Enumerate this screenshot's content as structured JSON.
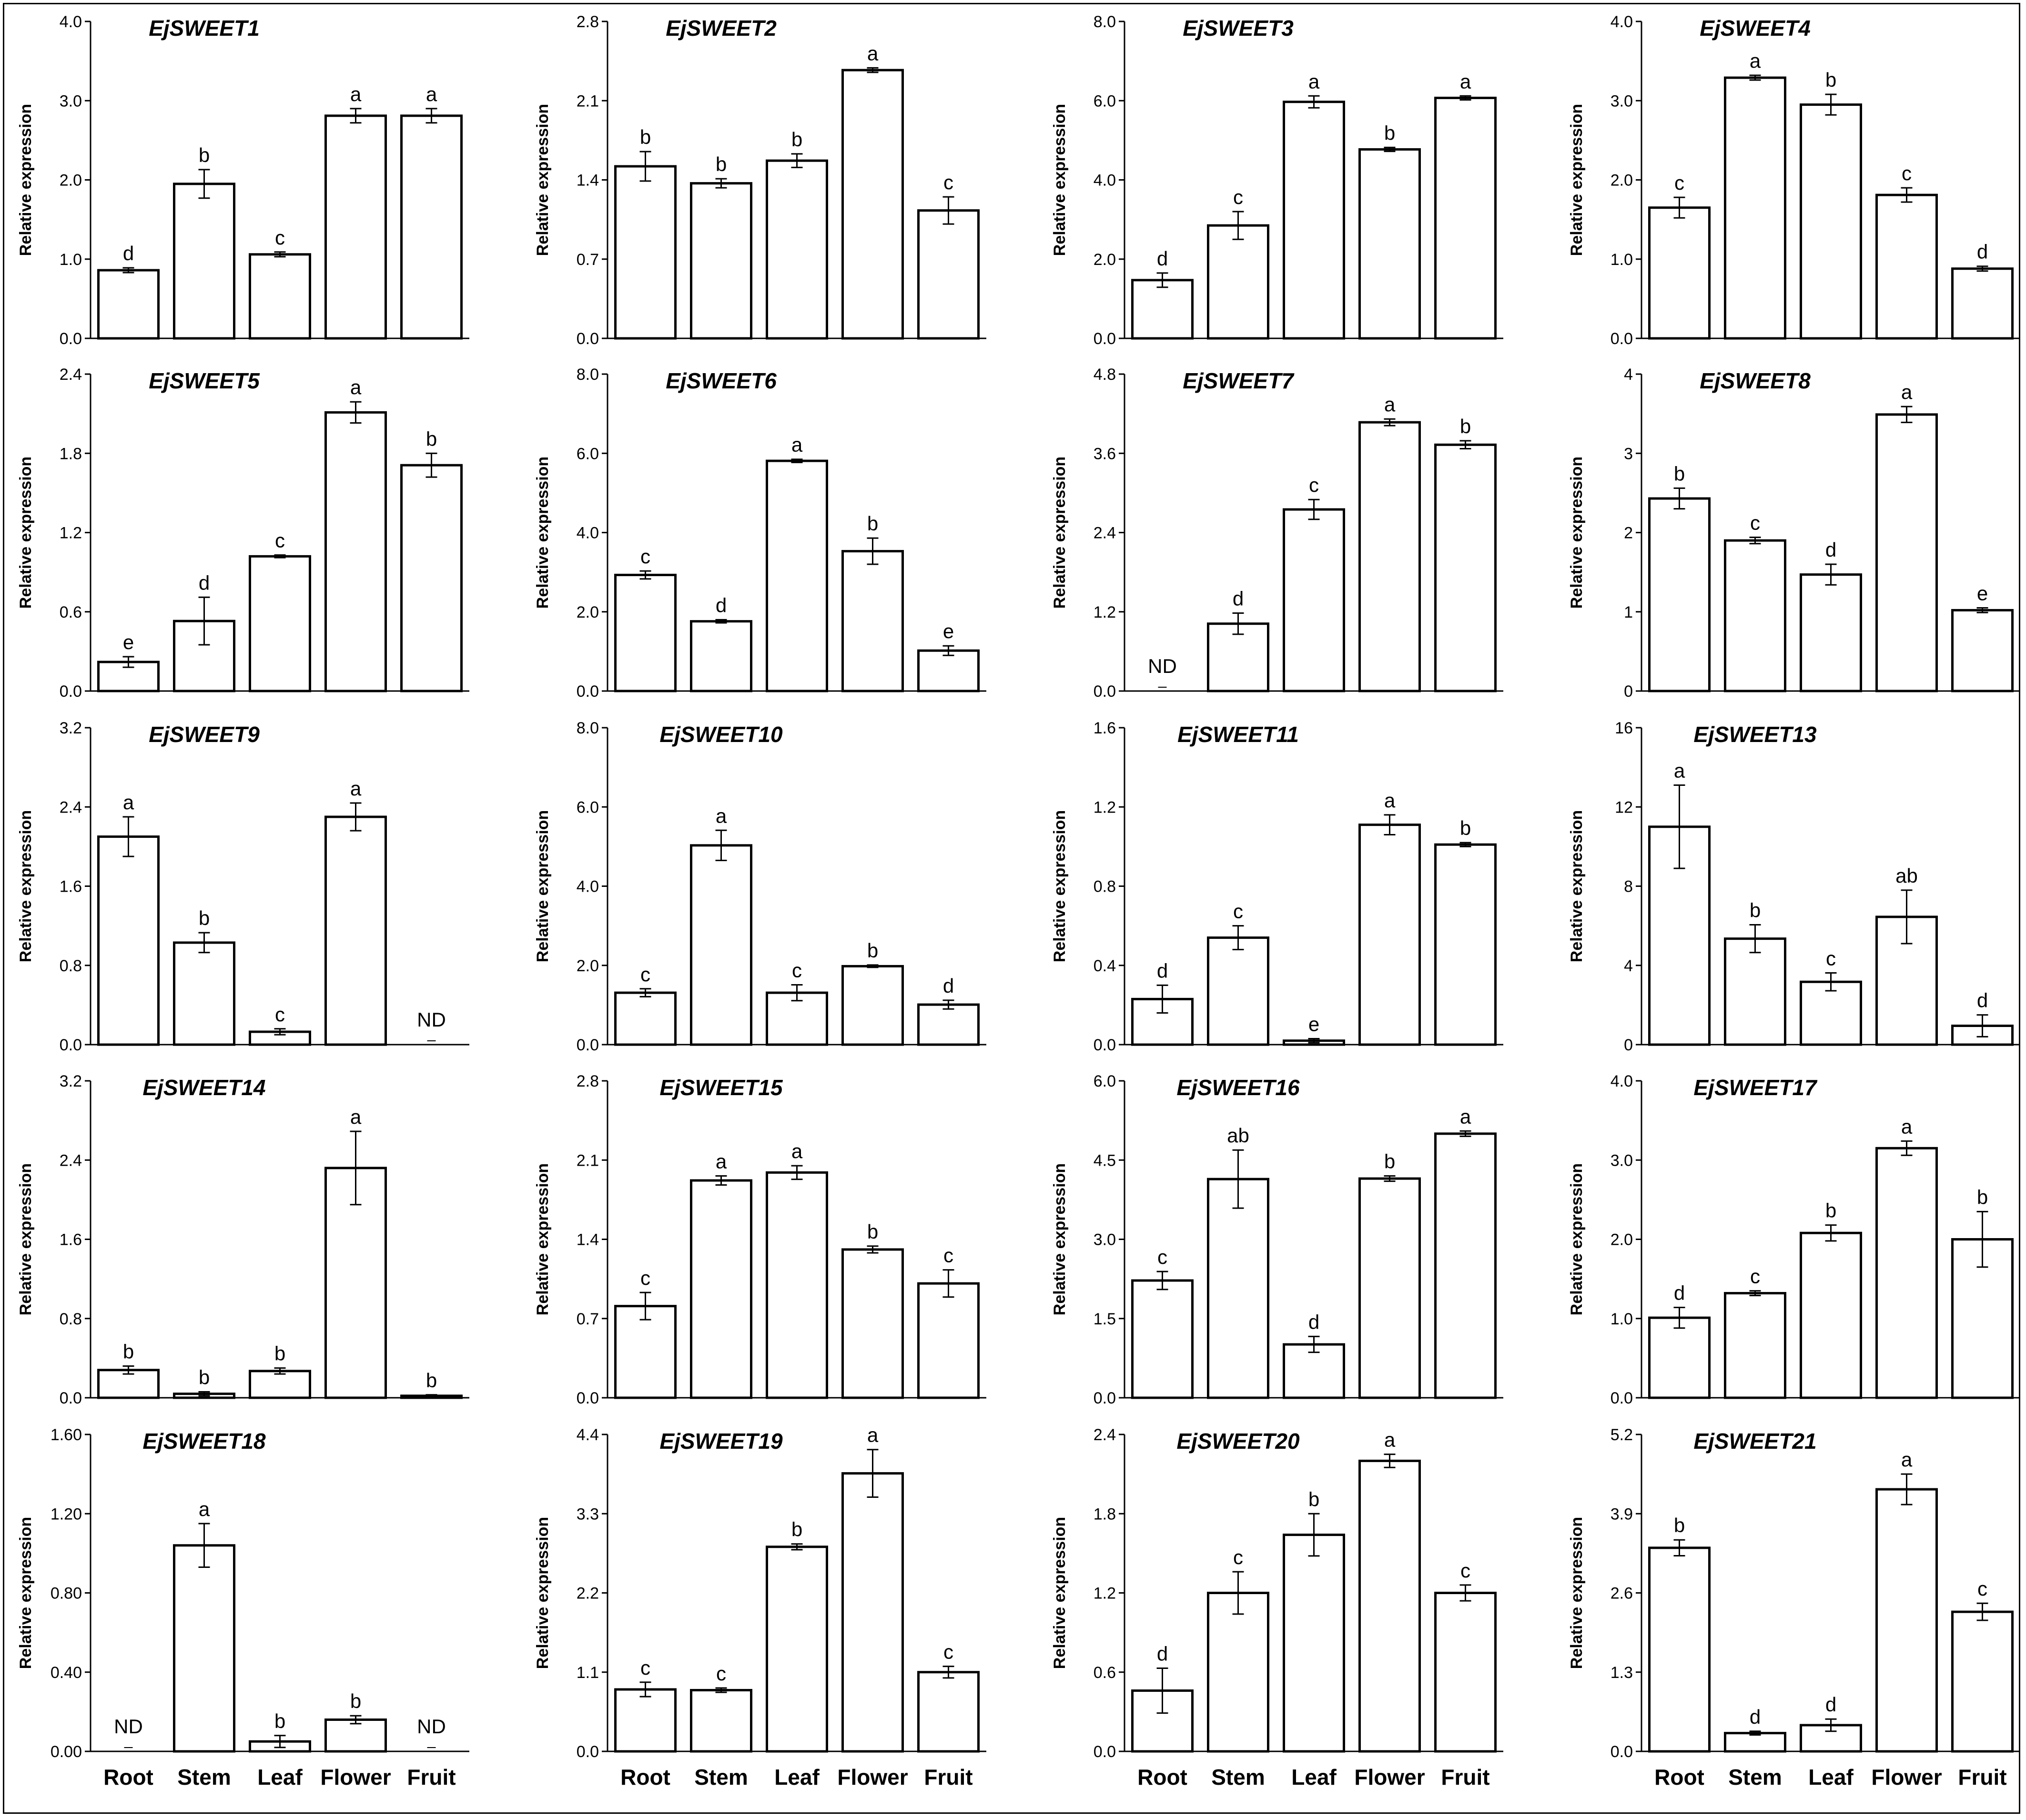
{
  "figure": {
    "ylabel": "Relative expression",
    "categories": [
      "Root",
      "Stem",
      "Leaf",
      "Flower",
      "Fruit"
    ],
    "nd_label": "ND"
  },
  "chart_data": [
    {
      "type": "bar",
      "title": "EjSWEET1",
      "ylabel": "Relative expression",
      "categories": [
        "Root",
        "Stem",
        "Leaf",
        "Flower",
        "Fruit"
      ],
      "ylim": [
        0,
        4.0
      ],
      "yticks": [
        "0.0",
        "1.0",
        "2.0",
        "3.0",
        "4.0"
      ],
      "values": [
        0.86,
        1.95,
        1.06,
        2.81,
        2.81
      ],
      "errors": [
        0.03,
        0.18,
        0.03,
        0.09,
        0.09
      ],
      "letters": [
        "d",
        "b",
        "c",
        "a",
        "a"
      ]
    },
    {
      "type": "bar",
      "title": "EjSWEET2",
      "ylabel": "Relative expression",
      "categories": [
        "Root",
        "Stem",
        "Leaf",
        "Flower",
        "Fruit"
      ],
      "ylim": [
        0,
        2.8
      ],
      "yticks": [
        "0.0",
        "0.7",
        "1.4",
        "2.1",
        "2.8"
      ],
      "values": [
        1.52,
        1.37,
        1.57,
        2.37,
        1.13
      ],
      "errors": [
        0.13,
        0.04,
        0.06,
        0.02,
        0.12
      ],
      "letters": [
        "b",
        "b",
        "b",
        "a",
        "c"
      ]
    },
    {
      "type": "bar",
      "title": "EjSWEET3",
      "ylabel": "Relative expression",
      "categories": [
        "Root",
        "Stem",
        "Leaf",
        "Flower",
        "Fruit"
      ],
      "ylim": [
        0,
        8.0
      ],
      "yticks": [
        "0.0",
        "2.0",
        "4.0",
        "6.0",
        "8.0"
      ],
      "values": [
        1.47,
        2.85,
        5.97,
        4.77,
        6.07
      ],
      "errors": [
        0.18,
        0.35,
        0.15,
        0.05,
        0.05
      ],
      "letters": [
        "d",
        "c",
        "a",
        "b",
        "a"
      ]
    },
    {
      "type": "bar",
      "title": "EjSWEET4",
      "ylabel": "Relative expression",
      "categories": [
        "Root",
        "Stem",
        "Leaf",
        "Flower",
        "Fruit"
      ],
      "ylim": [
        0,
        4.0
      ],
      "yticks": [
        "0.0",
        "1.0",
        "2.0",
        "3.0",
        "4.0"
      ],
      "values": [
        1.65,
        3.29,
        2.95,
        1.81,
        0.88
      ],
      "errors": [
        0.13,
        0.03,
        0.13,
        0.09,
        0.03
      ],
      "letters": [
        "c",
        "a",
        "b",
        "c",
        "d"
      ]
    },
    {
      "type": "bar",
      "title": "EjSWEET5",
      "ylabel": "Relative expression",
      "categories": [
        "Root",
        "Stem",
        "Leaf",
        "Flower",
        "Fruit"
      ],
      "ylim": [
        0,
        2.4
      ],
      "yticks": [
        "0.0",
        "0.6",
        "1.2",
        "1.8",
        "2.4"
      ],
      "values": [
        0.22,
        0.53,
        1.02,
        2.11,
        1.71
      ],
      "errors": [
        0.04,
        0.18,
        0.01,
        0.08,
        0.09
      ],
      "letters": [
        "e",
        "d",
        "c",
        "a",
        "b"
      ]
    },
    {
      "type": "bar",
      "title": "EjSWEET6",
      "ylabel": "Relative expression",
      "categories": [
        "Root",
        "Stem",
        "Leaf",
        "Flower",
        "Fruit"
      ],
      "ylim": [
        0,
        8.0
      ],
      "yticks": [
        "0.0",
        "2.0",
        "4.0",
        "6.0",
        "8.0"
      ],
      "values": [
        2.93,
        1.76,
        5.81,
        3.53,
        1.02
      ],
      "errors": [
        0.1,
        0.04,
        0.04,
        0.33,
        0.12
      ],
      "letters": [
        "c",
        "d",
        "a",
        "b",
        "e"
      ]
    },
    {
      "type": "bar",
      "title": "EjSWEET7",
      "ylabel": "Relative expression",
      "categories": [
        "Root",
        "Stem",
        "Leaf",
        "Flower",
        "Fruit"
      ],
      "ylim": [
        0,
        4.8
      ],
      "yticks": [
        "0.0",
        "1.2",
        "2.4",
        "3.6",
        "4.8"
      ],
      "values": [
        null,
        1.02,
        2.75,
        4.07,
        3.73
      ],
      "errors": [
        0,
        0.16,
        0.15,
        0.05,
        0.06
      ],
      "letters": [
        "",
        "d",
        "c",
        "a",
        "b"
      ]
    },
    {
      "type": "bar",
      "title": "EjSWEET8",
      "ylabel": "Relative expression",
      "categories": [
        "Root",
        "Stem",
        "Leaf",
        "Flower",
        "Fruit"
      ],
      "ylim": [
        0,
        4
      ],
      "yticks": [
        "0",
        "1",
        "2",
        "3",
        "4"
      ],
      "values": [
        2.43,
        1.9,
        1.47,
        3.49,
        1.02
      ],
      "errors": [
        0.13,
        0.04,
        0.13,
        0.1,
        0.03
      ],
      "letters": [
        "b",
        "c",
        "d",
        "a",
        "e"
      ]
    },
    {
      "type": "bar",
      "title": "EjSWEET9",
      "ylabel": "Relative expression",
      "categories": [
        "Root",
        "Stem",
        "Leaf",
        "Flower",
        "Fruit"
      ],
      "ylim": [
        0,
        3.2
      ],
      "yticks": [
        "0.0",
        "0.8",
        "1.6",
        "2.4",
        "3.2"
      ],
      "values": [
        2.1,
        1.03,
        0.13,
        2.3,
        null
      ],
      "errors": [
        0.2,
        0.1,
        0.03,
        0.14,
        0
      ],
      "letters": [
        "a",
        "b",
        "c",
        "a",
        ""
      ]
    },
    {
      "type": "bar",
      "title": "EjSWEET10",
      "ylabel": "Relative expression",
      "categories": [
        "Root",
        "Stem",
        "Leaf",
        "Flower",
        "Fruit"
      ],
      "ylim": [
        0,
        8.0
      ],
      "yticks": [
        "0.0",
        "2.0",
        "4.0",
        "6.0",
        "8.0"
      ],
      "values": [
        1.31,
        5.03,
        1.31,
        1.98,
        1.01
      ],
      "errors": [
        0.1,
        0.38,
        0.2,
        0.03,
        0.11
      ],
      "letters": [
        "c",
        "a",
        "c",
        "b",
        "d"
      ]
    },
    {
      "type": "bar",
      "title": "EjSWEET11",
      "ylabel": "Relative expression",
      "categories": [
        "Root",
        "Stem",
        "Leaf",
        "Flower",
        "Fruit"
      ],
      "ylim": [
        0,
        1.6
      ],
      "yticks": [
        "0.0",
        "0.4",
        "0.8",
        "1.2",
        "1.6"
      ],
      "values": [
        0.23,
        0.54,
        0.02,
        1.11,
        1.01
      ],
      "errors": [
        0.07,
        0.06,
        0.01,
        0.05,
        0.01
      ],
      "letters": [
        "d",
        "c",
        "e",
        "a",
        "b"
      ]
    },
    {
      "type": "bar",
      "title": "EjSWEET13",
      "ylabel": "Relative expression",
      "categories": [
        "Root",
        "Stem",
        "Leaf",
        "Flower",
        "Fruit"
      ],
      "ylim": [
        0,
        16
      ],
      "yticks": [
        "0",
        "4",
        "8",
        "12",
        "16"
      ],
      "values": [
        11.0,
        5.35,
        3.17,
        6.45,
        0.95
      ],
      "errors": [
        2.1,
        0.7,
        0.45,
        1.35,
        0.55
      ],
      "letters": [
        "a",
        "b",
        "c",
        "ab",
        "d"
      ]
    },
    {
      "type": "bar",
      "title": "EjSWEET14",
      "ylabel": "Relative expression",
      "categories": [
        "Root",
        "Stem",
        "Leaf",
        "Flower",
        "Fruit"
      ],
      "ylim": [
        0,
        3.2
      ],
      "yticks": [
        "0.0",
        "0.8",
        "1.6",
        "2.4",
        "3.2"
      ],
      "values": [
        0.28,
        0.04,
        0.27,
        2.32,
        0.02
      ],
      "errors": [
        0.04,
        0.02,
        0.03,
        0.37,
        0.01
      ],
      "letters": [
        "b",
        "b",
        "b",
        "a",
        "b"
      ]
    },
    {
      "type": "bar",
      "title": "EjSWEET15",
      "ylabel": "Relative expression",
      "categories": [
        "Root",
        "Stem",
        "Leaf",
        "Flower",
        "Fruit"
      ],
      "ylim": [
        0,
        2.8
      ],
      "yticks": [
        "0.0",
        "0.7",
        "1.4",
        "2.1",
        "2.8"
      ],
      "values": [
        0.81,
        1.92,
        1.99,
        1.31,
        1.01
      ],
      "errors": [
        0.12,
        0.04,
        0.06,
        0.03,
        0.12
      ],
      "letters": [
        "c",
        "a",
        "a",
        "b",
        "c"
      ]
    },
    {
      "type": "bar",
      "title": "EjSWEET16",
      "ylabel": "Relative expression",
      "categories": [
        "Root",
        "Stem",
        "Leaf",
        "Flower",
        "Fruit"
      ],
      "ylim": [
        0,
        6.0
      ],
      "yticks": [
        "0.0",
        "1.5",
        "3.0",
        "4.5",
        "6.0"
      ],
      "values": [
        2.22,
        4.14,
        1.01,
        4.15,
        5.0
      ],
      "errors": [
        0.17,
        0.55,
        0.15,
        0.05,
        0.05
      ],
      "letters": [
        "c",
        "ab",
        "d",
        "b",
        "a"
      ]
    },
    {
      "type": "bar",
      "title": "EjSWEET17",
      "ylabel": "Relative expression",
      "categories": [
        "Root",
        "Stem",
        "Leaf",
        "Flower",
        "Fruit"
      ],
      "ylim": [
        0,
        4.0
      ],
      "yticks": [
        "0.0",
        "1.0",
        "2.0",
        "3.0",
        "4.0"
      ],
      "values": [
        1.01,
        1.32,
        2.08,
        3.15,
        2.0
      ],
      "errors": [
        0.13,
        0.03,
        0.1,
        0.09,
        0.35
      ],
      "letters": [
        "d",
        "c",
        "b",
        "a",
        "b"
      ]
    },
    {
      "type": "bar",
      "title": "EjSWEET18",
      "ylabel": "Relative expression",
      "categories": [
        "Root",
        "Stem",
        "Leaf",
        "Flower",
        "Fruit"
      ],
      "ylim": [
        0,
        1.6
      ],
      "yticks": [
        "0.00",
        "0.40",
        "0.80",
        "1.20",
        "1.60"
      ],
      "values": [
        null,
        1.04,
        0.05,
        0.16,
        null
      ],
      "errors": [
        0,
        0.11,
        0.03,
        0.02,
        0
      ],
      "letters": [
        "",
        "a",
        "b",
        "b",
        ""
      ]
    },
    {
      "type": "bar",
      "title": "EjSWEET19",
      "ylabel": "Relative expression",
      "categories": [
        "Root",
        "Stem",
        "Leaf",
        "Flower",
        "Fruit"
      ],
      "ylim": [
        0,
        4.4
      ],
      "yticks": [
        "0.0",
        "1.1",
        "2.2",
        "3.3",
        "4.4"
      ],
      "values": [
        0.86,
        0.85,
        2.84,
        3.86,
        1.1
      ],
      "errors": [
        0.1,
        0.03,
        0.04,
        0.33,
        0.08
      ],
      "letters": [
        "c",
        "c",
        "b",
        "a",
        "c"
      ]
    },
    {
      "type": "bar",
      "title": "EjSWEET20",
      "ylabel": "Relative expression",
      "categories": [
        "Root",
        "Stem",
        "Leaf",
        "Flower",
        "Fruit"
      ],
      "ylim": [
        0,
        2.4
      ],
      "yticks": [
        "0.0",
        "0.6",
        "1.2",
        "1.8",
        "2.4"
      ],
      "values": [
        0.46,
        1.2,
        1.64,
        2.2,
        1.2
      ],
      "errors": [
        0.17,
        0.16,
        0.16,
        0.05,
        0.06
      ],
      "letters": [
        "d",
        "c",
        "b",
        "a",
        "c"
      ]
    },
    {
      "type": "bar",
      "title": "EjSWEET21",
      "ylabel": "Relative expression",
      "categories": [
        "Root",
        "Stem",
        "Leaf",
        "Flower",
        "Fruit"
      ],
      "ylim": [
        0,
        5.2
      ],
      "yticks": [
        "0.0",
        "1.3",
        "2.6",
        "3.9",
        "5.2"
      ],
      "values": [
        3.34,
        0.3,
        0.43,
        4.3,
        2.29
      ],
      "errors": [
        0.13,
        0.03,
        0.1,
        0.25,
        0.14
      ],
      "letters": [
        "b",
        "d",
        "d",
        "a",
        "c"
      ]
    }
  ]
}
